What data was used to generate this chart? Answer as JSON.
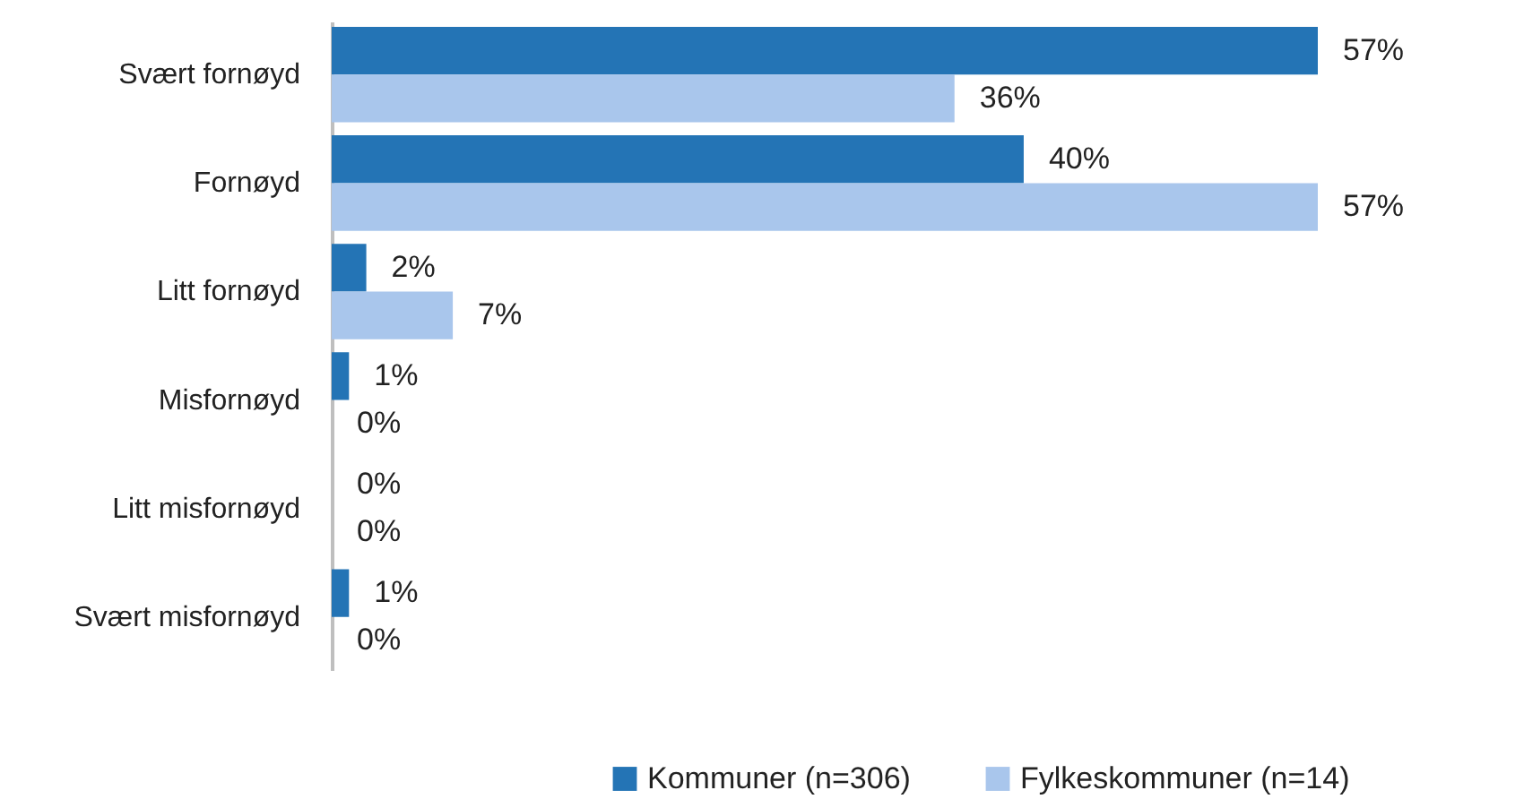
{
  "chart_data": {
    "type": "bar",
    "orientation": "horizontal",
    "categories": [
      "Svært fornøyd",
      "Fornøyd",
      "Litt fornøyd",
      "Misfornøyd",
      "Litt misfornøyd",
      "Svært misfornøyd"
    ],
    "series": [
      {
        "name": "Kommuner (n=306)",
        "color": "#2474b5",
        "values": [
          57,
          40,
          2,
          1,
          0,
          1
        ],
        "value_labels": [
          "57%",
          "40%",
          "2%",
          "1%",
          "0%",
          "1%"
        ]
      },
      {
        "name": "Fylkeskommuner (n=14)",
        "color": "#a9c6ec",
        "values": [
          36,
          57,
          7,
          0,
          0,
          0
        ],
        "value_labels": [
          "36%",
          "57%",
          "7%",
          "0%",
          "0%",
          "0%"
        ]
      }
    ],
    "tick_labels": "y",
    "legend": "bottom right"
  }
}
